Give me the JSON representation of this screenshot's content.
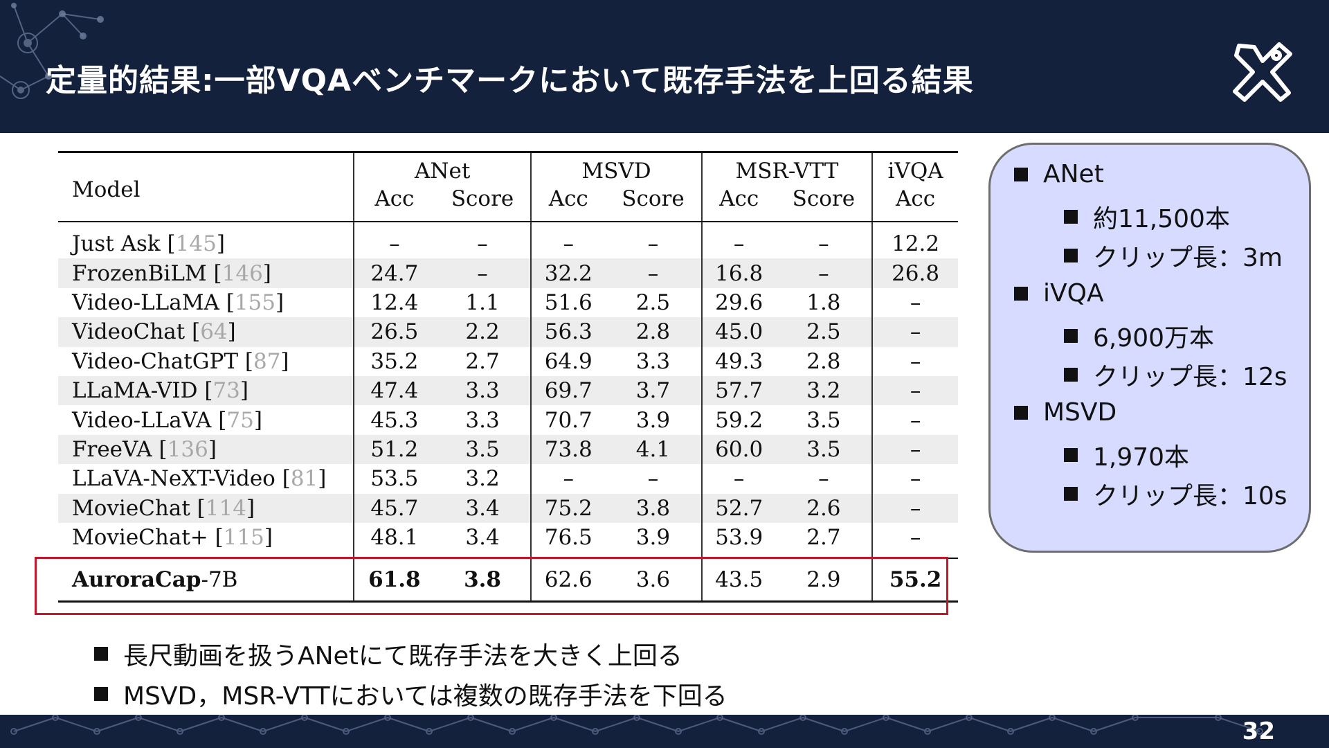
{
  "title": "定量的結果:一部VQAベンチマークにおいて既存手法を上回る結果",
  "page_number": "32",
  "table": {
    "model_header": "Model",
    "groups": [
      "ANet",
      "MSVD",
      "MSR-VTT",
      "iVQA"
    ],
    "subheaders": [
      "Acc",
      "Score",
      "Acc",
      "Score",
      "Acc",
      "Score",
      "Acc"
    ],
    "rows": [
      {
        "model": "Just Ask",
        "cite": "145",
        "v": [
          "–",
          "–",
          "–",
          "–",
          "–",
          "–",
          "12.2"
        ]
      },
      {
        "model": "FrozenBiLM",
        "cite": "146",
        "v": [
          "24.7",
          "–",
          "32.2",
          "–",
          "16.8",
          "–",
          "26.8"
        ]
      },
      {
        "model": "Video-LLaMA",
        "cite": "155",
        "v": [
          "12.4",
          "1.1",
          "51.6",
          "2.5",
          "29.6",
          "1.8",
          "–"
        ]
      },
      {
        "model": "VideoChat",
        "cite": "64",
        "v": [
          "26.5",
          "2.2",
          "56.3",
          "2.8",
          "45.0",
          "2.5",
          "–"
        ]
      },
      {
        "model": "Video-ChatGPT",
        "cite": "87",
        "v": [
          "35.2",
          "2.7",
          "64.9",
          "3.3",
          "49.3",
          "2.8",
          "–"
        ]
      },
      {
        "model": "LLaMA-VID",
        "cite": "73",
        "v": [
          "47.4",
          "3.3",
          "69.7",
          "3.7",
          "57.7",
          "3.2",
          "–"
        ]
      },
      {
        "model": "Video-LLaVA",
        "cite": "75",
        "v": [
          "45.3",
          "3.3",
          "70.7",
          "3.9",
          "59.2",
          "3.5",
          "–"
        ]
      },
      {
        "model": "FreeVA",
        "cite": "136",
        "v": [
          "51.2",
          "3.5",
          "73.8",
          "4.1",
          "60.0",
          "3.5",
          "–"
        ]
      },
      {
        "model": "LLaVA-NeXT-Video",
        "cite": "81",
        "v": [
          "53.5",
          "3.2",
          "–",
          "–",
          "–",
          "–",
          "–"
        ]
      },
      {
        "model": "MovieChat",
        "cite": "114",
        "v": [
          "45.7",
          "3.4",
          "75.2",
          "3.8",
          "52.7",
          "2.6",
          "–"
        ]
      },
      {
        "model": "MovieChat+",
        "cite": "115",
        "v": [
          "48.1",
          "3.4",
          "76.5",
          "3.9",
          "53.9",
          "2.7",
          "–"
        ]
      }
    ],
    "ours": {
      "model_bold": "AuroraCap",
      "model_suffix": "-7B",
      "v": [
        "61.8",
        "3.8",
        "62.6",
        "3.6",
        "43.5",
        "2.9",
        "55.2"
      ]
    }
  },
  "panel": {
    "anet": "ANet",
    "anet_count": "約11,500本",
    "anet_clip": "クリップ長：3m",
    "ivqa": "iVQA",
    "ivqa_count": "6,900万本",
    "ivqa_clip": "クリップ長：12s",
    "msvd": "MSVD",
    "msvd_count": "1,970本",
    "msvd_clip": "クリップ長：10s"
  },
  "bullets": [
    "長尺動画を扱うANetにて既存手法を大きく上回る",
    "MSVD，MSR-VTTにおいては複数の既存手法を下回る"
  ],
  "colors": {
    "header_bg": "#14213d",
    "panel_bg": "#d6dbff",
    "highlight": "#c4172c"
  }
}
